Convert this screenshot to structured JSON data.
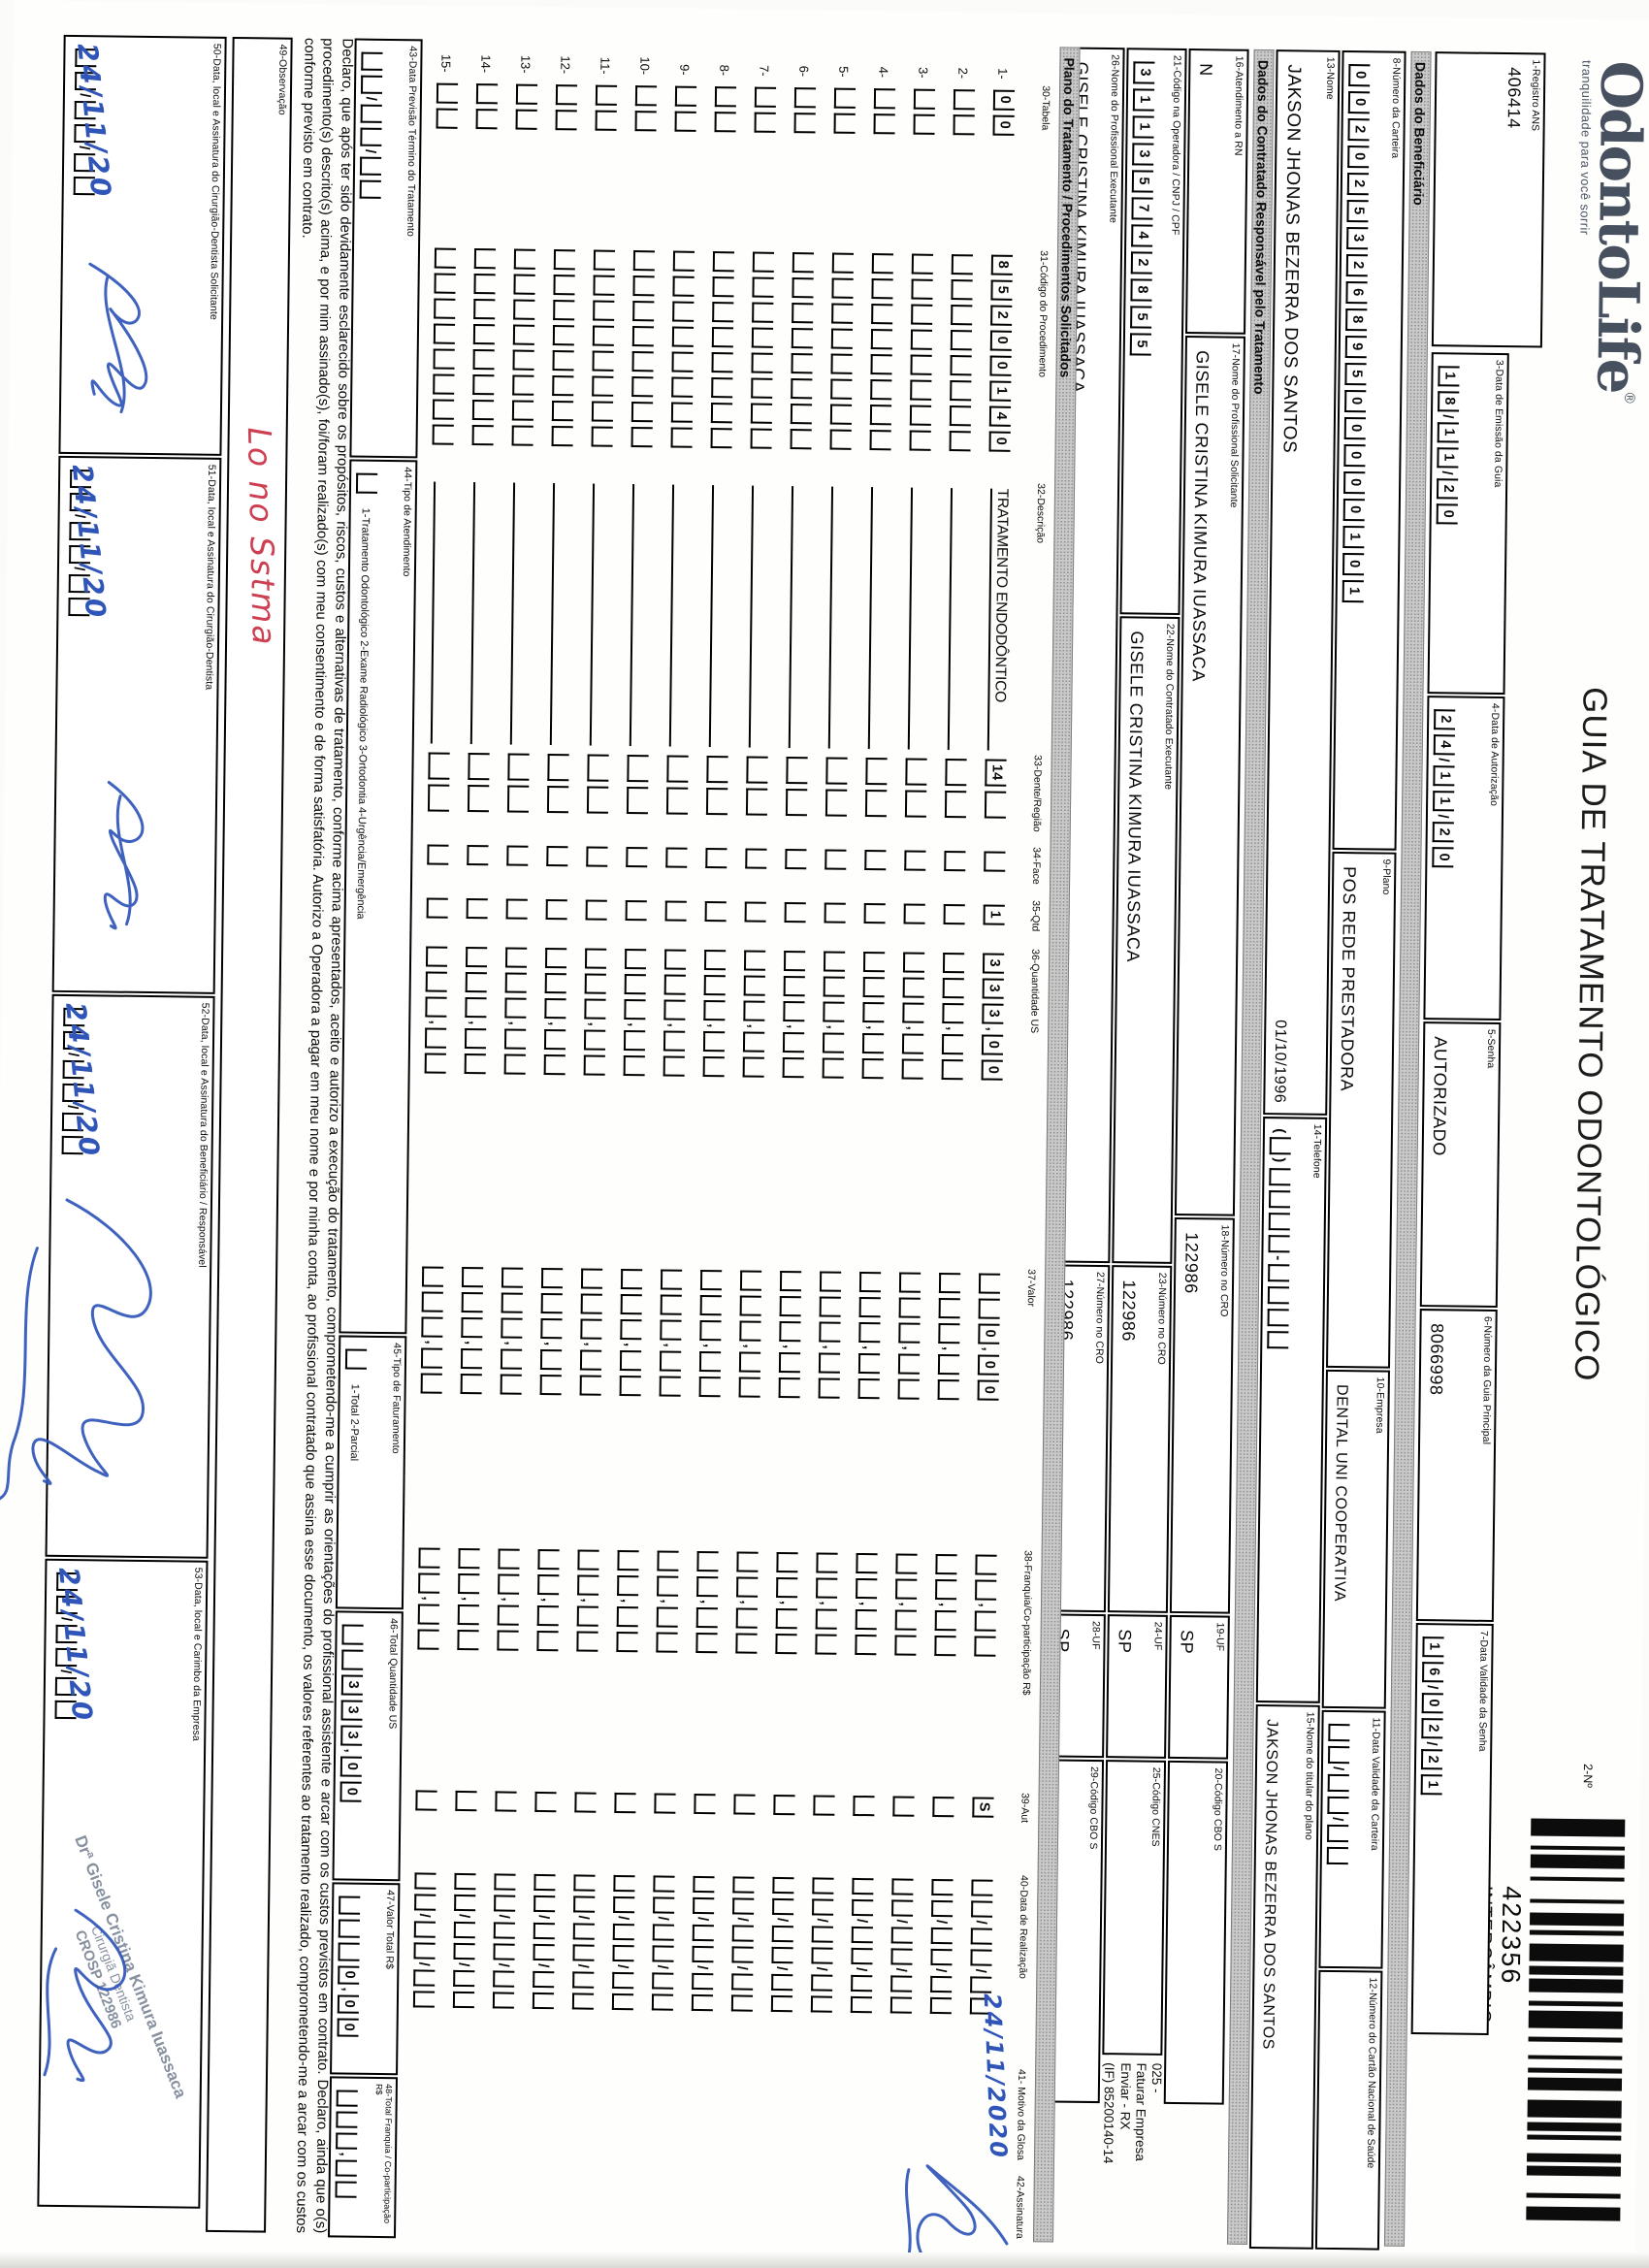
{
  "colors": {
    "ink_blue": "#2f55b8",
    "note_red": "#cd4052",
    "stamp_gray": "#87909f"
  },
  "header": {
    "logo_text": "OdontoLife",
    "logo_reg": "®",
    "tagline": "tranquilidade para você sorrir",
    "title": "GUIA DE TRATAMENTO ODONTOLÓGICO",
    "n2_label": "2-Nº",
    "barcode_number": "422356",
    "barcode_tag": "INTERCÂMBIO"
  },
  "bars": {
    "beneficiario": "Dados do Beneficiário",
    "contratado": "Dados do Contratado Responsável pelo Tratamento",
    "plano": "Plano do Tratamento / Procedimentos Solicitados"
  },
  "fields": {
    "f1": {
      "label": "1-Registro ANS",
      "value": "406414"
    },
    "f3": {
      "label": "3-Data de Emissão da Guia",
      "comb": [
        "1",
        "8",
        "/",
        "1",
        "1",
        "/",
        "2",
        "0"
      ]
    },
    "f4": {
      "label": "4-Data de Autorização",
      "comb": [
        "2",
        "4",
        "/",
        "1",
        "1",
        "/",
        "2",
        "0"
      ]
    },
    "f5": {
      "label": "5-Senha",
      "value": "AUTORIZADO"
    },
    "f6": {
      "label": "6-Número da Guia Principal",
      "value": "8066998"
    },
    "f7": {
      "label": "7-Data Validade da Senha",
      "comb": [
        "1",
        "6",
        "/",
        "0",
        "2",
        "/",
        "2",
        "1"
      ]
    },
    "f8": {
      "label": "8-Número da Carteira",
      "comb": [
        "0",
        "0",
        "2",
        "0",
        "2",
        "5",
        "3",
        "2",
        "6",
        "8",
        "9",
        "5",
        "0",
        "0",
        "0",
        "0",
        "0",
        "1",
        "0",
        "1"
      ]
    },
    "f9": {
      "label": "9-Plano",
      "value": "POS REDE PRESTADORA"
    },
    "f10": {
      "label": "10-Empresa",
      "value": "DENTAL UNI  COOPERATIVA"
    },
    "f11": {
      "label": "11-Data Validade da Carteira",
      "comb": [
        "",
        "",
        "/",
        "",
        "",
        "/",
        "",
        ""
      ]
    },
    "f12": {
      "label": "12-Número do Cartão Nacional de Saúde",
      "value": ""
    },
    "f13": {
      "label": "13-Nome",
      "value": "JAKSON JHONAS BEZERRA DOS SANTOS",
      "aux": "01/10/1996"
    },
    "f14": {
      "label": "14-Telefone",
      "comb": [
        "#(",
        "",
        "#)",
        "#  ",
        "",
        "",
        "",
        "",
        "#-",
        "",
        "",
        "",
        ""
      ]
    },
    "f15": {
      "label": "15-Nome do titular do plano",
      "value": "JAKSON JHONAS BEZERRA DOS SANTOS"
    },
    "f16": {
      "label": "16-Atendimento a RN",
      "value": "N"
    },
    "f17": {
      "label": "17-Nome do Profissional Solicitante",
      "value": "GISELE CRISTINA KIMURA IUASSACA"
    },
    "f18": {
      "label": "18-Número no CRO",
      "value": "122986"
    },
    "f19": {
      "label": "19-UF",
      "value": "SP"
    },
    "f20": {
      "label": "20-Código CBO S",
      "value": ""
    },
    "f21": {
      "label": "21-Código na Operadora / CNPJ / CPF",
      "comb": [
        "3",
        "1",
        "1",
        "3",
        "5",
        "7",
        "4",
        "2",
        "8",
        "5",
        "5"
      ]
    },
    "f22": {
      "label": "22-Nome do Contratado Executante",
      "value": "GISELE CRISTINA KIMURA IUASSACA"
    },
    "f23": {
      "label": "23-Número no CRO",
      "value": "122986"
    },
    "f24": {
      "label": "24-UF",
      "value": "SP"
    },
    "f25": {
      "label": "25-Código CNES",
      "value": ""
    },
    "f26": {
      "label": "26-Nome do Profissional Executante",
      "value": "GISELE CRISTINA KIMURA IUASSACA"
    },
    "f27": {
      "label": "27-Número no CRO",
      "value": "122986"
    },
    "f28": {
      "label": "28-UF",
      "value": "SP"
    },
    "f29": {
      "label": "29-Código CBO S",
      "value": ""
    },
    "f43": {
      "label": "43-Data Previsão Término do Tratamento",
      "comb": [
        "",
        "",
        "/",
        "",
        "",
        "/",
        "",
        ""
      ]
    },
    "f44": {
      "label": "44-Tipo de Atendimento",
      "comb": [
        ""
      ],
      "legend": "1-Tratamento Odontológico  2-Exame Radiológico  3-Ortodontia  4-Urgência/Emergência"
    },
    "f45": {
      "label": "45-Tipo de Faturamento",
      "comb": [
        ""
      ],
      "legend": "1-Total  2-Parcial"
    },
    "f46": {
      "label": "46-Total Quantidade US",
      "comb": [
        "",
        "",
        "3",
        "3",
        "3",
        ",",
        "0",
        "0"
      ]
    },
    "f47": {
      "label": "47-Valor Total R$",
      "comb": [
        "",
        "",
        "",
        "0",
        ",",
        "0",
        "0"
      ]
    },
    "f48": {
      "label": "48-Total Franquia / Co-participação R$",
      "comb": [
        "",
        "",
        "",
        ",",
        "",
        ""
      ]
    }
  },
  "printed_note": {
    "lines": [
      "025 -",
      "Faturar Empresa",
      "Enviar - RX",
      "(IF) 85200140-14"
    ]
  },
  "table": {
    "columns": [
      "30-Tabela",
      "31-Código do Procedimento",
      "32-Descrição",
      "33-Dente/Região",
      "34-Face",
      "35-Qtd",
      "36-Quantidade US",
      "37-Valor",
      "38-Franquia/Co-participação R$",
      "39-Aut",
      "40-Data de Realização",
      "41- Motivo da Glosa",
      "42-Assinatura"
    ],
    "row_count": 15,
    "row1": {
      "t30": [
        "0",
        "0"
      ],
      "t31": [
        "8",
        "5",
        "2",
        "0",
        "0",
        "1",
        "4",
        "0"
      ],
      "t32": "TRATAMENTO ENDODÔNTICO",
      "t33": [
        "14",
        ""
      ],
      "t34": [
        ""
      ],
      "t35": [
        "1"
      ],
      "t36": [
        "3",
        "3",
        "3",
        ",",
        "0",
        "0"
      ],
      "t37": [
        "",
        "",
        "0",
        ",",
        "0",
        "0"
      ],
      "t38": [
        "",
        "",
        ",",
        "",
        ""
      ],
      "t39": [
        "S"
      ],
      "t40": [
        "",
        "",
        "/",
        "",
        "",
        "/",
        "",
        ""
      ],
      "handwritten_date": "24/11/2020"
    }
  },
  "declaration": "Declaro, que após ter sido devidamente esclarecido sobre os propósitos, riscos, custos e alternativas de tratamento, conforme acima apresentados, aceito e autorizo a execução do tratamento, comprometendo-me a cumprir as orientações do profissional assistente e arcar com os custos previstos em contrato. Declaro, ainda que o(s) procedimento(s) descrito(s) acima, e por mim assinado(s), foi/foram realizado(s) com meu consentimento e de forma satisfatória. Autorizo a Operadora a pagar em meu nome e por minha conta, ao profissional contratado que assina esse documento, os valores referentes ao tratamento realizado, comprometendo-me a arcar com os custos conforme previsto em contrato.",
  "observacao": {
    "label": "49-Observação",
    "note": "Lo no Sstma"
  },
  "signatures": [
    {
      "label": "50-Data, local e Assinatura do Cirurgião-Dentista Solicitante",
      "date": "24/11/20"
    },
    {
      "label": "51-Data, local e Assinatura do Cirurgião-Dentista",
      "date": "24/11/20"
    },
    {
      "label": "52-Data, local e Assinatura do Beneficiário / Responsável",
      "date": "24/11/20"
    },
    {
      "label": "53-Data, local e Carimbo da Empresa",
      "date": "24/11/20"
    }
  ],
  "stamp": {
    "lines": [
      "Drª Gisele Cristina Kimura Iuassaca",
      "Cirurgiã Dentista",
      "CROSP 122986"
    ]
  }
}
